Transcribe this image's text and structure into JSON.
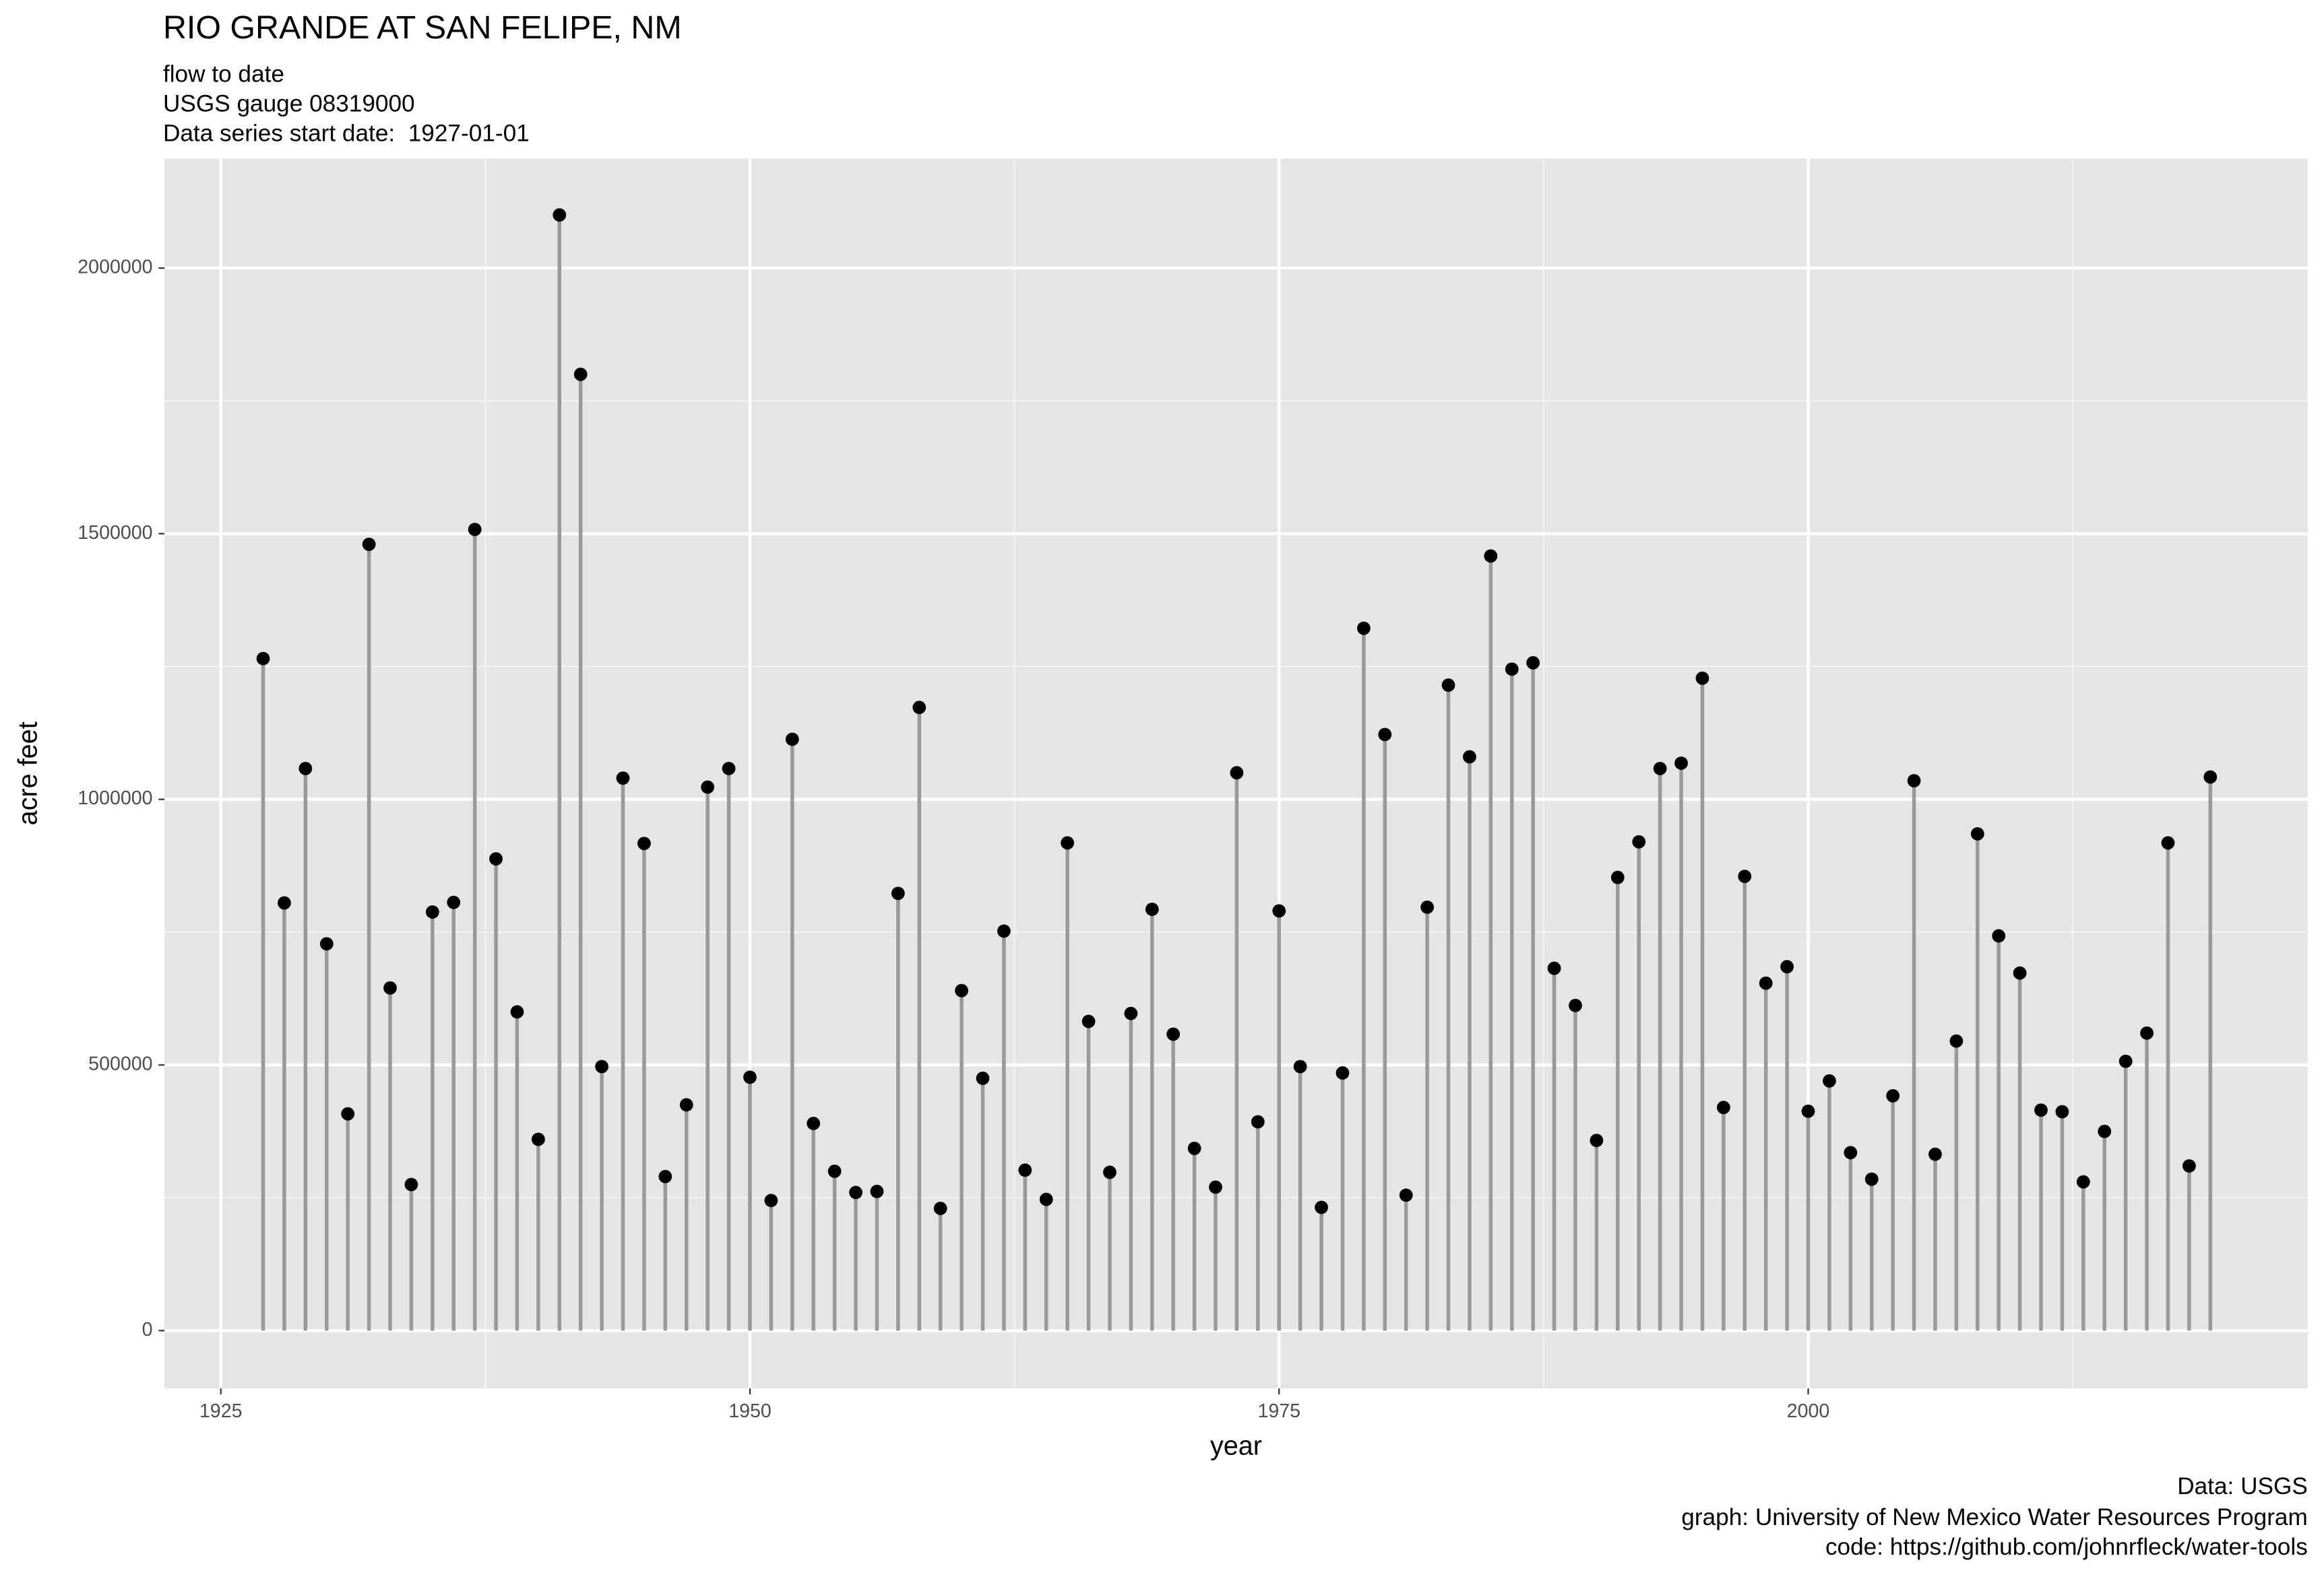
{
  "chart_data": {
    "type": "lollipop",
    "title": "RIO GRANDE AT SAN FELIPE, NM",
    "subtitle": [
      "flow to date",
      "USGS gauge 08319000",
      "Data series start date:  1927-01-01"
    ],
    "caption": [
      "Data: USGS",
      "graph: University of New Mexico Water Resources Program",
      "code: https://github.com/johnrfleck/water-tools"
    ],
    "xlabel": "year",
    "ylabel": "acre feet",
    "x": [
      1927,
      1928,
      1929,
      1930,
      1931,
      1932,
      1933,
      1934,
      1935,
      1936,
      1937,
      1938,
      1939,
      1940,
      1941,
      1942,
      1943,
      1944,
      1945,
      1946,
      1947,
      1948,
      1949,
      1950,
      1951,
      1952,
      1953,
      1954,
      1955,
      1956,
      1957,
      1958,
      1959,
      1960,
      1961,
      1962,
      1963,
      1964,
      1965,
      1966,
      1967,
      1968,
      1969,
      1970,
      1971,
      1972,
      1973,
      1974,
      1975,
      1976,
      1977,
      1978,
      1979,
      1980,
      1981,
      1982,
      1983,
      1984,
      1985,
      1986,
      1987,
      1988,
      1989,
      1990,
      1991,
      1992,
      1993,
      1994,
      1995,
      1996,
      1997,
      1998,
      1999,
      2000,
      2001,
      2002,
      2003,
      2004,
      2005,
      2006,
      2007,
      2008,
      2009,
      2010,
      2011,
      2012,
      2013,
      2014,
      2015,
      2016,
      2017,
      2018,
      2019
    ],
    "values": [
      1265000,
      805000,
      1058000,
      728000,
      408000,
      1480000,
      645000,
      275000,
      788000,
      806000,
      1508000,
      888000,
      600000,
      360000,
      2100000,
      1800000,
      497000,
      1040000,
      917000,
      290000,
      425000,
      1023000,
      1058000,
      477000,
      245000,
      1113000,
      390000,
      300000,
      260000,
      262000,
      823000,
      1173000,
      230000,
      640000,
      475000,
      752000,
      302000,
      247000,
      918000,
      582000,
      298000,
      597000,
      793000,
      558000,
      343000,
      270000,
      1050000,
      393000,
      790000,
      497000,
      232000,
      485000,
      1322000,
      1122000,
      255000,
      797000,
      1215000,
      1080000,
      1458000,
      1245000,
      1257000,
      682000,
      612000,
      358000,
      853000,
      920000,
      1058000,
      1068000,
      1228000,
      420000,
      855000,
      654000,
      685000,
      413000,
      470000,
      335000,
      285000,
      442000,
      1035000,
      332000,
      545000,
      935000,
      743000,
      673000,
      415000,
      412000,
      280000,
      375000,
      507000,
      560000,
      918000,
      310000,
      1042000
    ],
    "color": "#000000",
    "stem_color": "#999999",
    "xlim": [
      1922.34,
      2023.6
    ],
    "xticks": [
      1925,
      1950,
      1975,
      2000
    ],
    "ylim": [
      -108800,
      2206000
    ],
    "yticks": [
      0,
      500000,
      1000000,
      1500000,
      2000000
    ],
    "grid": true
  }
}
